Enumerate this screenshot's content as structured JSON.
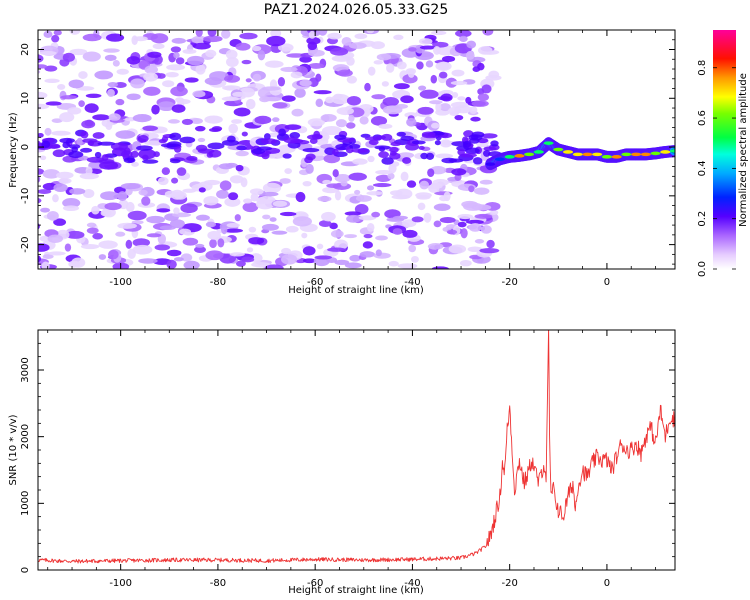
{
  "title": "PAZ1.2024.026.05.33.G25",
  "chart_data": [
    {
      "type": "heatmap",
      "xlabel": "Height of straight line (km)",
      "ylabel": "Frequency (Hz)",
      "xlim": [
        -117,
        14
      ],
      "ylim": [
        -25,
        24
      ],
      "xticks": [
        -100,
        -80,
        -60,
        -40,
        -20,
        0
      ],
      "yticks": [
        -20,
        -10,
        0,
        10,
        20
      ],
      "grid": false,
      "colormap": [
        "#ffffff",
        "#d9b8ff",
        "#9a4dff",
        "#3300ff",
        "#0033ff",
        "#00ccff",
        "#00ff66",
        "#66ff00",
        "#ffee00",
        "#ff8800",
        "#ff0000",
        "#ff0088"
      ],
      "noise_region_x": [
        -117,
        -23
      ],
      "signal_track": {
        "x": [
          -24,
          -22,
          -20,
          -18,
          -16,
          -14,
          -12,
          -10,
          -8,
          -6,
          -4,
          -2,
          0,
          2,
          4,
          6,
          8,
          10,
          12,
          14
        ],
        "y": [
          -3.5,
          -2.5,
          -2,
          -1.8,
          -1.5,
          -1,
          0.8,
          -0.5,
          -1,
          -1.5,
          -1.5,
          -1.5,
          -2,
          -2,
          -1.5,
          -1.5,
          -1.5,
          -1.3,
          -1,
          -0.8
        ],
        "amplitude": [
          0.3,
          0.4,
          0.55,
          0.8,
          0.65,
          0.5,
          0.55,
          0.6,
          0.75,
          0.7,
          0.85,
          0.75,
          0.6,
          0.85,
          0.6,
          0.8,
          0.85,
          0.6,
          0.75,
          0.5
        ]
      }
    },
    {
      "type": "colorbar",
      "label": "Normalized spectral amplitude",
      "ticks": [
        "0.0",
        "0.2",
        "0.4",
        "0.6",
        "0.8"
      ],
      "tick_values": [
        0,
        0.2,
        0.4,
        0.6,
        0.8
      ],
      "range": [
        0,
        0.95
      ]
    },
    {
      "type": "line",
      "xlabel": "Height of straight line (km)",
      "ylabel": "SNR (10 * v/v)",
      "xlim": [
        -117,
        14
      ],
      "ylim": [
        0,
        3600
      ],
      "xticks": [
        -100,
        -80,
        -60,
        -40,
        -20,
        0
      ],
      "yticks": [
        0,
        1000,
        2000,
        3000
      ],
      "grid": false,
      "color": "#ee3333",
      "series": [
        {
          "x": [
            -117,
            -110,
            -100,
            -90,
            -80,
            -70,
            -60,
            -50,
            -40,
            -35,
            -30,
            -27,
            -25,
            -24,
            -23,
            -22,
            -21.5,
            -21,
            -20.5,
            -20,
            -19,
            -18,
            -17,
            -16,
            -15.5,
            -15,
            -14,
            -13,
            -12.5,
            -12.2,
            -12,
            -11.8,
            -11.5,
            -11,
            -10,
            -9,
            -8,
            -7,
            -6.5,
            -6,
            -5,
            -4,
            -3,
            -2,
            -1,
            0,
            1,
            2,
            3,
            4,
            5,
            6,
            7,
            8,
            9,
            10,
            11,
            12,
            13,
            14
          ],
          "y": [
            150,
            130,
            140,
            150,
            150,
            140,
            160,
            150,
            160,
            170,
            180,
            250,
            350,
            500,
            800,
            1100,
            1600,
            1500,
            2100,
            2450,
            1200,
            1650,
            1300,
            1500,
            1650,
            1550,
            1300,
            1600,
            1400,
            2600,
            3600,
            2000,
            1100,
            1200,
            900,
            800,
            1100,
            1300,
            900,
            1250,
            1500,
            1400,
            1600,
            1700,
            1650,
            1650,
            1500,
            1700,
            1900,
            1800,
            1800,
            1900,
            1750,
            2000,
            2150,
            1900,
            2400,
            2000,
            2300,
            2250
          ]
        }
      ]
    }
  ]
}
